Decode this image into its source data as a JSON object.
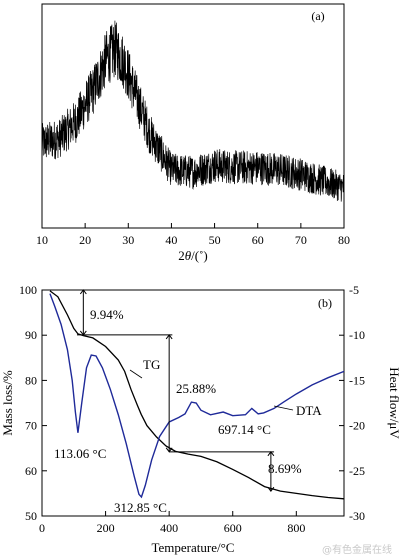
{
  "chart_data": [
    {
      "type": "line",
      "panel_label": "(a)",
      "xlabel_html": "2θ/(°)",
      "xlabel_parts": {
        "sym": "2",
        "theta": "θ",
        "unit": "/(˚)"
      },
      "xlim": [
        10,
        80
      ],
      "xticks": [
        "10",
        "20",
        "30",
        "40",
        "50",
        "60",
        "70",
        "80"
      ],
      "yticks_shown": false,
      "series": [
        {
          "description_points": [
            [
              10,
              0.38
            ],
            [
              14,
              0.4
            ],
            [
              18,
              0.48
            ],
            [
              22,
              0.62
            ],
            [
              25,
              0.76
            ],
            [
              27,
              0.8
            ],
            [
              29,
              0.74
            ],
            [
              32,
              0.58
            ],
            [
              35,
              0.42
            ],
            [
              38,
              0.32
            ],
            [
              40,
              0.26
            ],
            [
              45,
              0.25
            ],
            [
              50,
              0.28
            ],
            [
              55,
              0.27
            ],
            [
              60,
              0.27
            ],
            [
              65,
              0.26
            ],
            [
              70,
              0.24
            ],
            [
              75,
              0.21
            ],
            [
              80,
              0.18
            ]
          ]
        }
      ]
    },
    {
      "type": "line",
      "panel_label": "(b)",
      "xlabel": "Temperature/°C",
      "ylabel_left": "Mass loss/%",
      "ylabel_right": "Heat flow/μV",
      "xlim": [
        0,
        950
      ],
      "ylim_left": [
        50,
        100
      ],
      "ylim_right": [
        -30,
        -5
      ],
      "xticks": [
        "0",
        "200",
        "400",
        "600",
        "800"
      ],
      "yticks_left": [
        "50",
        "60",
        "70",
        "80",
        "90",
        "100"
      ],
      "yticks_right": [
        "-5",
        "-10",
        "-15",
        "-20",
        "-25",
        "-30"
      ],
      "series": [
        {
          "name": "TG",
          "axis": "left",
          "color": "#000000",
          "points": [
            [
              25,
              99.8
            ],
            [
              50,
              98.5
            ],
            [
              80,
              94.5
            ],
            [
              100,
              91.5
            ],
            [
              113,
              90.3
            ],
            [
              130,
              89.9
            ],
            [
              160,
              89.4
            ],
            [
              200,
              87.5
            ],
            [
              240,
              84.5
            ],
            [
              260,
              82.0
            ],
            [
              280,
              78.0
            ],
            [
              300,
              74.5
            ],
            [
              312,
              72.5
            ],
            [
              330,
              70.0
            ],
            [
              360,
              67.5
            ],
            [
              390,
              65.5
            ],
            [
              420,
              64.3
            ],
            [
              460,
              63.7
            ],
            [
              500,
              63.2
            ],
            [
              550,
              62.0
            ],
            [
              600,
              60.3
            ],
            [
              650,
              58.5
            ],
            [
              700,
              56.5
            ],
            [
              750,
              55.5
            ],
            [
              800,
              55.0
            ],
            [
              850,
              54.5
            ],
            [
              900,
              54.1
            ],
            [
              950,
              53.8
            ]
          ]
        },
        {
          "name": "DTA",
          "axis": "right",
          "color": "#1f2a99",
          "points": [
            [
              25,
              -5.4
            ],
            [
              40,
              -6.8
            ],
            [
              60,
              -8.8
            ],
            [
              80,
              -11.6
            ],
            [
              95,
              -15.0
            ],
            [
              105,
              -18.5
            ],
            [
              113.06,
              -20.8
            ],
            [
              125,
              -17.5
            ],
            [
              140,
              -13.6
            ],
            [
              155,
              -12.2
            ],
            [
              170,
              -12.3
            ],
            [
              190,
              -13.6
            ],
            [
              215,
              -16.0
            ],
            [
              240,
              -18.8
            ],
            [
              265,
              -22.0
            ],
            [
              290,
              -25.6
            ],
            [
              305,
              -27.6
            ],
            [
              312.85,
              -27.9
            ],
            [
              325,
              -26.6
            ],
            [
              345,
              -23.8
            ],
            [
              370,
              -21.2
            ],
            [
              400,
              -19.6
            ],
            [
              430,
              -19.1
            ],
            [
              450,
              -18.7
            ],
            [
              470,
              -17.4
            ],
            [
              485,
              -17.5
            ],
            [
              500,
              -18.3
            ],
            [
              530,
              -18.8
            ],
            [
              570,
              -18.5
            ],
            [
              600,
              -18.9
            ],
            [
              640,
              -18.8
            ],
            [
              660,
              -18.1
            ],
            [
              680,
              -18.7
            ],
            [
              697.14,
              -18.6
            ],
            [
              730,
              -18.1
            ],
            [
              760,
              -17.4
            ],
            [
              800,
              -16.5
            ],
            [
              850,
              -15.5
            ],
            [
              900,
              -14.7
            ],
            [
              950,
              -14.0
            ]
          ]
        }
      ],
      "annotations": {
        "step1": "9.94%",
        "step2": "25.88%",
        "step3": "8.69%",
        "peak1": "113.06 °C",
        "peak2": "312.85 °C",
        "peak3": "697.14 °C",
        "tg_label": "TG",
        "dta_label": "DTA"
      }
    }
  ],
  "watermark": "@有色金属在线"
}
